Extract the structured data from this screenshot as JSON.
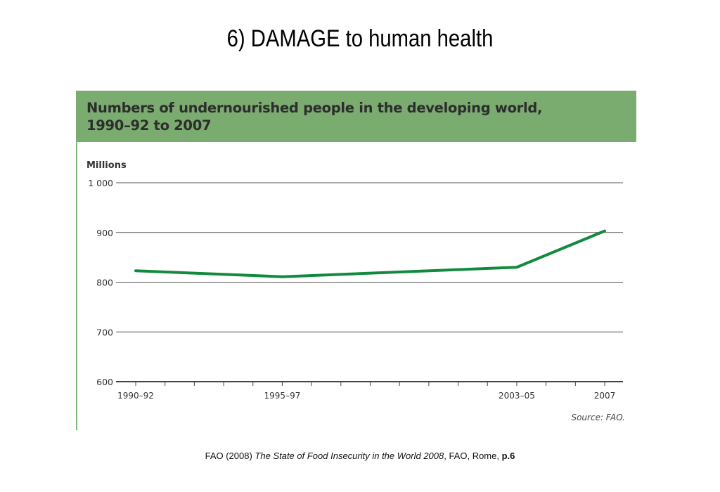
{
  "slide": {
    "title": "6) DAMAGE to human health"
  },
  "chart_panel": {
    "banner_line1": "Numbers of undernourished people in the developing world,",
    "banner_line2": "1990–92 to 2007",
    "banner_color": "#7aab6f",
    "source": "Source: FAO."
  },
  "chart_data": {
    "type": "line",
    "title": "Numbers of undernourished people in the developing world, 1990–92 to 2007",
    "ylabel": "Millions",
    "xlabel": "",
    "ylim": [
      600,
      1000
    ],
    "y_ticks": [
      {
        "value": 1000,
        "label": "1 000"
      },
      {
        "value": 900,
        "label": "900"
      },
      {
        "value": 800,
        "label": "800"
      },
      {
        "value": 700,
        "label": "700"
      },
      {
        "value": 600,
        "label": "600"
      }
    ],
    "x_axis": {
      "start": 1991,
      "end": 2007
    },
    "x_tick_labels": [
      {
        "year": 1991,
        "label": "1990–92"
      },
      {
        "year": 1996,
        "label": "1995–97"
      },
      {
        "year": 2004,
        "label": "2003–05"
      },
      {
        "year": 2007,
        "label": "2007"
      }
    ],
    "x_minor_ticks": [
      1991,
      1992,
      1993,
      1994,
      1995,
      1996,
      1997,
      1998,
      1999,
      2000,
      2001,
      2002,
      2003,
      2004,
      2005,
      2006,
      2007
    ],
    "grid": true,
    "series": [
      {
        "color": "#128a3e",
        "points": [
          {
            "x": 1991,
            "y": 823
          },
          {
            "x": 1996,
            "y": 811
          },
          {
            "x": 2004,
            "y": 830
          },
          {
            "x": 2007,
            "y": 903
          }
        ]
      }
    ]
  },
  "footer": {
    "prefix": "FAO (2008) ",
    "ref_title": "The State of Food Insecurity in the World 2008",
    "suffix": ", FAO, Rome, ",
    "page": "p.6"
  }
}
